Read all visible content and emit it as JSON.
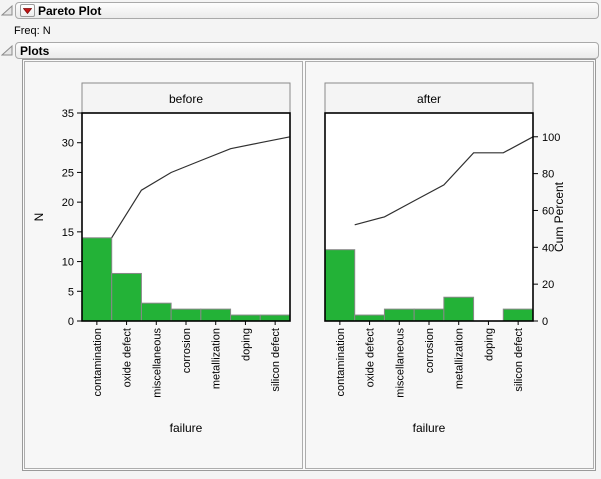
{
  "report": {
    "outline1": {
      "title": "Pareto Plot"
    },
    "freq_label": "Freq: N",
    "outline2": {
      "title": "Plots"
    }
  },
  "chart_data": [
    {
      "type": "bar",
      "subtype": "pareto",
      "panel": "before",
      "categories": [
        "contamination",
        "oxide defect",
        "miscellaneous",
        "corrosion",
        "metallization",
        "doping",
        "silicon defect"
      ],
      "values": [
        14,
        8,
        3,
        2,
        2,
        1,
        1
      ],
      "total": 31,
      "cumulative_counts": [
        14,
        22,
        25,
        27,
        29,
        30,
        31
      ],
      "cum_percent": [
        45.2,
        71.0,
        80.6,
        87.1,
        93.5,
        96.8,
        100.0
      ],
      "xlabel": "failure",
      "ylabel": "N",
      "ylim": [
        0,
        35
      ],
      "yticks": [
        0,
        5,
        10,
        15,
        20,
        25,
        30,
        35
      ],
      "legend": "none",
      "grid": false
    },
    {
      "type": "bar",
      "subtype": "pareto",
      "panel": "after",
      "categories": [
        "contamination",
        "oxide defect",
        "miscellaneous",
        "corrosion",
        "metallization",
        "doping",
        "silicon defect"
      ],
      "values": [
        12,
        1,
        2,
        2,
        4,
        0,
        2
      ],
      "total": 23,
      "cumulative_counts": [
        12,
        13,
        15,
        17,
        21,
        21,
        23
      ],
      "cum_percent": [
        52.2,
        56.5,
        65.2,
        73.9,
        91.3,
        91.3,
        100.0
      ],
      "xlabel": "failure",
      "y2label": "Cum Percent",
      "ylim": [
        0,
        35
      ],
      "y2ticks": [
        0,
        20,
        40,
        60,
        80,
        100
      ],
      "legend": "none",
      "grid": false
    }
  ],
  "colors": {
    "bar_fill": "#23b237",
    "bar_stroke": "#898989",
    "cum_line": "#303030",
    "frame": "#000000",
    "panel_header_fill": "#f4f4f4",
    "panel_header_stroke": "#8a8a8a",
    "titlebar_border": "#a9a9a9",
    "accent_red": "#c41414"
  }
}
